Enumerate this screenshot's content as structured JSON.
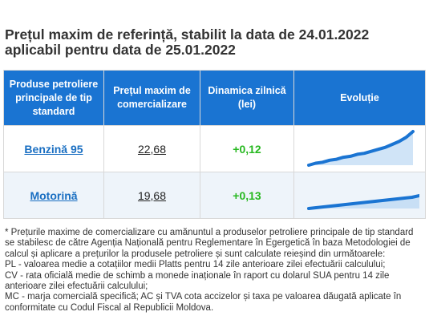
{
  "title": {
    "line1": "Prețul maxim de referință, stabilit la data de 24.01.2022",
    "line2": "aplicabil pentru data de 25.01.2022"
  },
  "table": {
    "headers": [
      "Produse petroliere principale de tip standard",
      "Prețul maxim de comercializare",
      "Dinamica zilnică (lei)",
      "Evoluție"
    ],
    "rows": [
      {
        "product": "Benzină 95",
        "price": "22,68",
        "dynamic": "+0,12",
        "trend": [
          10,
          12,
          13,
          15,
          16,
          18,
          19,
          21,
          22,
          24,
          26,
          28,
          31,
          34,
          38,
          44
        ]
      },
      {
        "product": "Motorină",
        "price": "19,68",
        "dynamic": "+0,13",
        "trend": [
          10,
          11,
          12,
          13,
          14,
          15,
          16,
          17,
          18,
          19,
          20,
          21,
          22,
          23,
          24,
          26
        ]
      }
    ],
    "colors": {
      "header_bg": "#1a74d2",
      "link": "#1a6fc2",
      "positive": "#26b81f",
      "sparkline": "#1a74d2"
    }
  },
  "footnote": [
    "* Prețurile maxime de comercializare cu amănuntul a produselor petroliere principale de tip standard se stabilesc de către Agenția Națională pentru Reglementare în Egergetică în baza Metodologiei de calcul și aplicare a prețurilor la produsele petroliere și sunt calculate reieșind din următoarele:",
    "PL - valoarea medie a cotațiilor medii Platts pentru 14 zile anterioare zilei efectuării calculului;",
    "CV - rata oficială medie de schimb a monede inaționale în raport cu dolarul SUA pentru 14 zile anterioare zilei efectuării calculului;",
    "MC - marja comercială specifică; AC și TVA cota accizelor și taxa pe valoarea dăugată aplicate în conformitate cu Codul Fiscal al Republicii Moldova."
  ]
}
